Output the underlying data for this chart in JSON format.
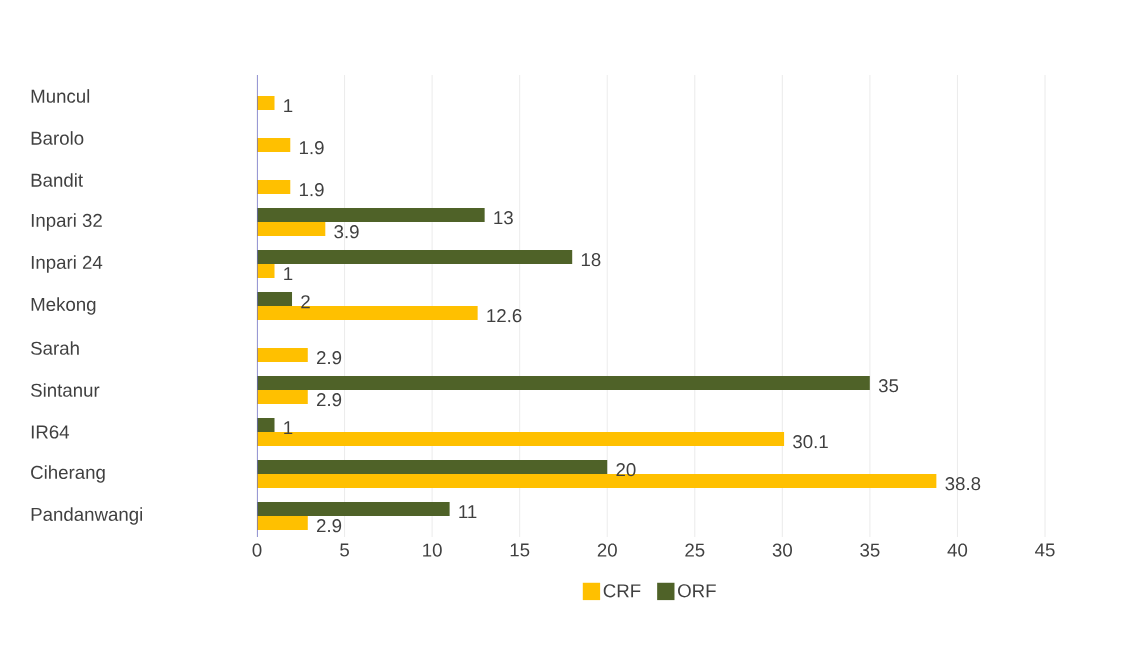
{
  "chart_data": {
    "type": "bar",
    "orientation": "horizontal",
    "categories": [
      "Muncul",
      "Barolo",
      "Bandit",
      "Inpari 32",
      "Inpari 24",
      "Mekong",
      "Sarah",
      "Sintanur",
      "IR64",
      "Ciherang",
      "Pandanwangi"
    ],
    "series": [
      {
        "name": "CRF",
        "color": "#ffc000",
        "values": [
          1,
          1.9,
          1.9,
          3.9,
          1,
          12.6,
          2.9,
          2.9,
          30.1,
          38.8,
          2.9
        ]
      },
      {
        "name": "ORF",
        "color": "#4f6228",
        "values": [
          null,
          null,
          null,
          13,
          18,
          2,
          null,
          35,
          1,
          20,
          11
        ]
      }
    ],
    "xlim": [
      0,
      45
    ],
    "xticks": [
      0,
      5,
      10,
      15,
      20,
      25,
      30,
      35,
      40,
      45
    ],
    "grid": "x",
    "legend": "bottom",
    "data_labels": true
  }
}
